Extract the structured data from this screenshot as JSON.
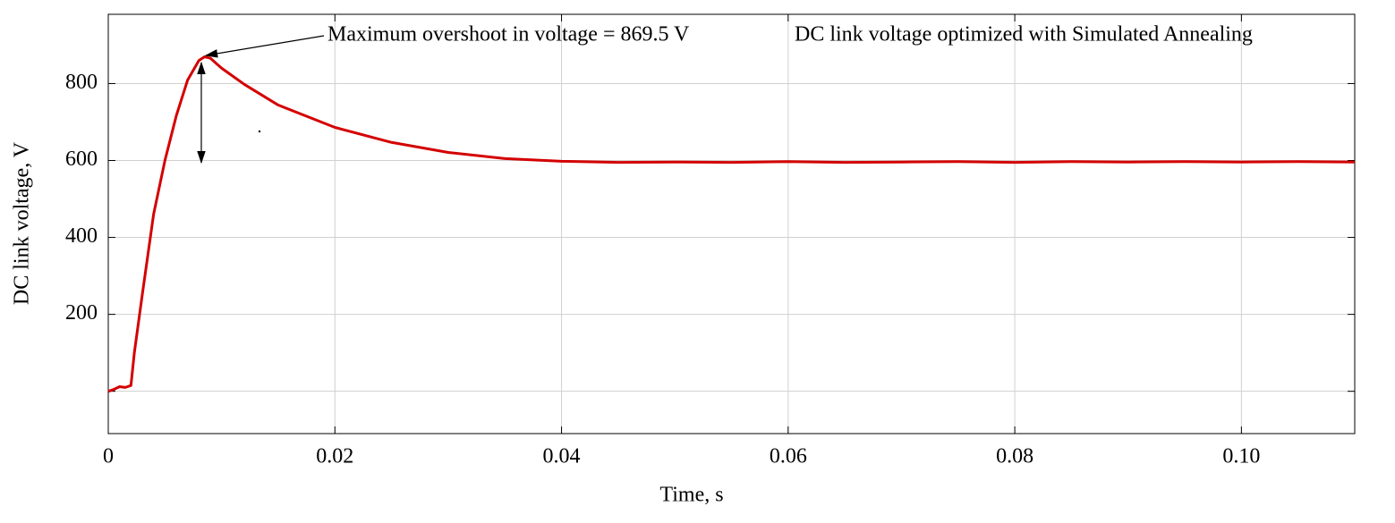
{
  "chart_data": {
    "type": "line",
    "x_label": "Time, s",
    "y_label": "DC link voltage, V",
    "annotations": [
      "Maximum overshoot in voltage = 869.5 V",
      "DC link voltage optimized with Simulated Annealing"
    ],
    "x": [
      0,
      0.0005,
      0.001,
      0.0015,
      0.002,
      0.0023,
      0.003,
      0.004,
      0.005,
      0.006,
      0.007,
      0.008,
      0.0085,
      0.009,
      0.01,
      0.012,
      0.015,
      0.02,
      0.025,
      0.03,
      0.035,
      0.04,
      0.045,
      0.05,
      0.055,
      0.06,
      0.065,
      0.07,
      0.075,
      0.08,
      0.085,
      0.09,
      0.095,
      0.1,
      0.105,
      0.11
    ],
    "series": [
      {
        "name": "DC link voltage",
        "color": "#d40000",
        "values": [
          0,
          5,
          12,
          10,
          15,
          100,
          251,
          460,
          600,
          716,
          809,
          860,
          869.5,
          866,
          840,
          798,
          744,
          686,
          647,
          621,
          605,
          598,
          595,
          596,
          595,
          597,
          595,
          596,
          597,
          595,
          597,
          596,
          597,
          596,
          597,
          596
        ]
      }
    ],
    "xlim": [
      0,
      0.11
    ],
    "xticks": [
      0,
      0.02,
      0.04,
      0.06,
      0.08,
      {
        "value": 0.1,
        "label": "0.10"
      }
    ],
    "ylim": [
      -110,
      980
    ],
    "yticks": [
      {
        "value": 0,
        "label": null
      },
      200,
      400,
      600,
      800
    ],
    "grid": true
  }
}
